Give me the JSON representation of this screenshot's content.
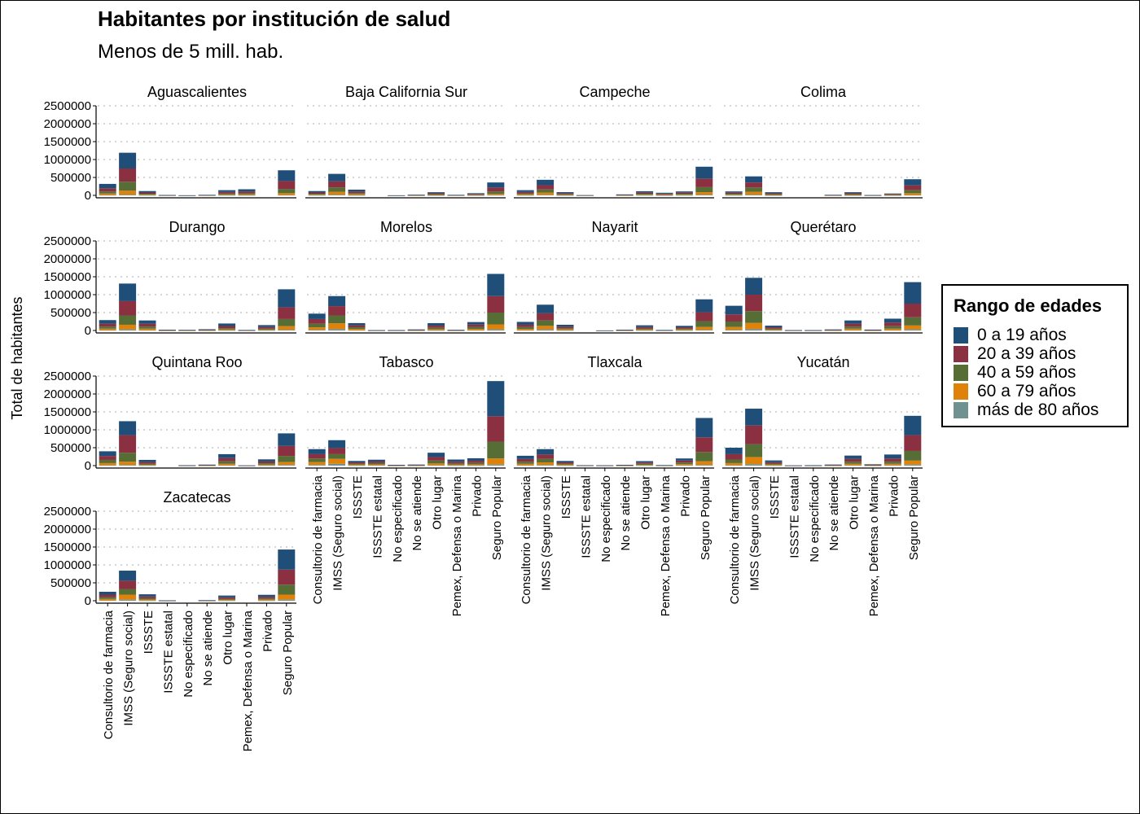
{
  "chart_data": {
    "type": "bar",
    "stacked": true,
    "faceted": true,
    "title": "Habitantes por institución de salud",
    "subtitle": "Menos de 5 mill. hab.",
    "ylabel": "Total de habitantes",
    "xlabel": "",
    "ylim": [
      0,
      2500000
    ],
    "yticks": [
      0,
      500000,
      1000000,
      1500000,
      2000000,
      2500000
    ],
    "ytick_labels": [
      "0",
      "500000",
      "1000000",
      "1500000",
      "2000000",
      "2500000"
    ],
    "grid": "horizontal dotted",
    "legend_position": "right",
    "categories": [
      "Consultorio de farmacia",
      "IMSS (Seguro social)",
      "ISSSTE",
      "ISSSTE estatal",
      "No especificado",
      "No se atiende",
      "Otro lugar",
      "Pemex, Defensa o Marina",
      "Privado",
      "Seguro Popular"
    ],
    "series_names": [
      "0 a 19 años",
      "20 a 39 años",
      "40 a 59 años",
      "60 a 79 años",
      "más de 80 años"
    ],
    "colors": [
      "#1f4e79",
      "#8b3040",
      "#566e36",
      "#e0820a",
      "#6f9290"
    ],
    "legend_title": "Rango de edades",
    "legend_labels": [
      "0 a 19 años",
      "20 a 39 años",
      "40 a 59 años",
      "60 a 79 años",
      "más de 80 años"
    ],
    "facets": [
      {
        "name": "Aguascalientes",
        "values": [
          [
            120000,
            90000,
            60000,
            40000,
            10000
          ],
          [
            440000,
            370000,
            250000,
            110000,
            20000
          ],
          [
            40000,
            35000,
            25000,
            15000,
            5000
          ],
          [
            3000,
            3000,
            2000,
            1000,
            500
          ],
          [
            500,
            500,
            500,
            200,
            100
          ],
          [
            5000,
            4000,
            3000,
            2000,
            500
          ],
          [
            50000,
            45000,
            30000,
            15000,
            5000
          ],
          [
            60000,
            50000,
            35000,
            20000,
            5000
          ],
          [
            0,
            0,
            0,
            0,
            0
          ],
          [
            300000,
            220000,
            120000,
            50000,
            10000
          ]
        ]
      },
      {
        "name": "Baja California Sur",
        "values": [
          [
            40000,
            35000,
            25000,
            15000,
            5000
          ],
          [
            210000,
            170000,
            120000,
            80000,
            20000
          ],
          [
            50000,
            45000,
            35000,
            25000,
            5000
          ],
          [
            0,
            0,
            0,
            0,
            0
          ],
          [
            500,
            400,
            300,
            200,
            100
          ],
          [
            8000,
            5000,
            3000,
            2000,
            500
          ],
          [
            30000,
            25000,
            20000,
            10000,
            3000
          ],
          [
            5000,
            4000,
            3000,
            2000,
            500
          ],
          [
            20000,
            20000,
            12000,
            6000,
            2000
          ],
          [
            140000,
            110000,
            70000,
            30000,
            10000
          ]
        ]
      },
      {
        "name": "Campeche",
        "values": [
          [
            50000,
            40000,
            30000,
            20000,
            5000
          ],
          [
            150000,
            120000,
            90000,
            60000,
            15000
          ],
          [
            30000,
            25000,
            20000,
            12000,
            3000
          ],
          [
            2000,
            1500,
            1000,
            500,
            200
          ],
          [
            0,
            0,
            0,
            0,
            0
          ],
          [
            10000,
            8000,
            5000,
            3000,
            1000
          ],
          [
            40000,
            30000,
            25000,
            15000,
            5000
          ],
          [
            25000,
            20000,
            15000,
            10000,
            3000
          ],
          [
            35000,
            30000,
            25000,
            15000,
            5000
          ],
          [
            330000,
            240000,
            140000,
            70000,
            20000
          ]
        ]
      },
      {
        "name": "Colima",
        "values": [
          [
            35000,
            30000,
            25000,
            15000,
            5000
          ],
          [
            170000,
            140000,
            120000,
            80000,
            20000
          ],
          [
            30000,
            25000,
            20000,
            10000,
            3000
          ],
          [
            0,
            0,
            0,
            0,
            0
          ],
          [
            0,
            0,
            0,
            0,
            0
          ],
          [
            6000,
            4000,
            3000,
            2000,
            500
          ],
          [
            30000,
            25000,
            20000,
            10000,
            3000
          ],
          [
            3000,
            2000,
            1500,
            1000,
            300
          ],
          [
            15000,
            15000,
            12000,
            8000,
            2000
          ],
          [
            170000,
            130000,
            90000,
            50000,
            10000
          ]
        ]
      },
      {
        "name": "Durango",
        "values": [
          [
            100000,
            80000,
            60000,
            40000,
            10000
          ],
          [
            490000,
            400000,
            260000,
            130000,
            30000
          ],
          [
            90000,
            80000,
            60000,
            40000,
            10000
          ],
          [
            8000,
            6000,
            4000,
            2000,
            500
          ],
          [
            6000,
            5000,
            4000,
            2000,
            500
          ],
          [
            15000,
            10000,
            6000,
            3000,
            1000
          ],
          [
            70000,
            60000,
            40000,
            20000,
            5000
          ],
          [
            5000,
            4000,
            3000,
            2000,
            500
          ],
          [
            55000,
            45000,
            30000,
            15000,
            5000
          ],
          [
            500000,
            330000,
            200000,
            100000,
            20000
          ]
        ]
      },
      {
        "name": "Morelos",
        "values": [
          [
            150000,
            130000,
            100000,
            70000,
            20000
          ],
          [
            280000,
            260000,
            220000,
            160000,
            40000
          ],
          [
            60000,
            55000,
            45000,
            35000,
            10000
          ],
          [
            3000,
            2500,
            2000,
            1000,
            300
          ],
          [
            4000,
            3000,
            2500,
            1500,
            500
          ],
          [
            12000,
            8000,
            6000,
            3000,
            1000
          ],
          [
            70000,
            60000,
            45000,
            25000,
            5000
          ],
          [
            7000,
            5000,
            4000,
            2000,
            500
          ],
          [
            70000,
            65000,
            55000,
            35000,
            10000
          ],
          [
            620000,
            460000,
            330000,
            140000,
            30000
          ]
        ]
      },
      {
        "name": "Nayarit",
        "values": [
          [
            80000,
            65000,
            50000,
            35000,
            10000
          ],
          [
            240000,
            200000,
            150000,
            100000,
            30000
          ],
          [
            50000,
            45000,
            35000,
            25000,
            5000
          ],
          [
            0,
            0,
            0,
            0,
            0
          ],
          [
            500,
            500,
            300,
            200,
            100
          ],
          [
            8000,
            6000,
            4000,
            2000,
            500
          ],
          [
            50000,
            40000,
            30000,
            20000,
            5000
          ],
          [
            5000,
            4000,
            3000,
            2000,
            500
          ],
          [
            40000,
            35000,
            30000,
            20000,
            5000
          ],
          [
            360000,
            250000,
            160000,
            80000,
            20000
          ]
        ]
      },
      {
        "name": "Querétaro",
        "values": [
          [
            240000,
            200000,
            150000,
            80000,
            20000
          ],
          [
            470000,
            460000,
            330000,
            170000,
            40000
          ],
          [
            45000,
            40000,
            30000,
            15000,
            5000
          ],
          [
            4000,
            3000,
            2000,
            1000,
            500
          ],
          [
            4000,
            3000,
            2000,
            1000,
            500
          ],
          [
            12000,
            8000,
            6000,
            3000,
            1000
          ],
          [
            90000,
            80000,
            60000,
            40000,
            10000
          ],
          [
            9000,
            7000,
            5000,
            3000,
            1000
          ],
          [
            110000,
            100000,
            70000,
            40000,
            10000
          ],
          [
            600000,
            380000,
            230000,
            110000,
            30000
          ]
        ]
      },
      {
        "name": "Quintana Roo",
        "values": [
          [
            130000,
            110000,
            90000,
            60000,
            10000
          ],
          [
            390000,
            490000,
            250000,
            90000,
            20000
          ],
          [
            60000,
            50000,
            30000,
            15000,
            5000
          ],
          [
            0,
            0,
            0,
            0,
            0
          ],
          [
            3000,
            2500,
            2000,
            1000,
            500
          ],
          [
            10000,
            8000,
            6000,
            3000,
            1000
          ],
          [
            110000,
            90000,
            70000,
            40000,
            10000
          ],
          [
            2000,
            1500,
            1000,
            500,
            200
          ],
          [
            60000,
            50000,
            40000,
            20000,
            5000
          ],
          [
            350000,
            280000,
            170000,
            80000,
            20000
          ]
        ]
      },
      {
        "name": "Tabasco",
        "values": [
          [
            140000,
            120000,
            100000,
            80000,
            20000
          ],
          [
            220000,
            170000,
            130000,
            140000,
            50000
          ],
          [
            40000,
            35000,
            30000,
            20000,
            5000
          ],
          [
            50000,
            45000,
            35000,
            25000,
            10000
          ],
          [
            8000,
            6000,
            4000,
            2000,
            500
          ],
          [
            12000,
            8000,
            6000,
            3000,
            1000
          ],
          [
            120000,
            100000,
            80000,
            50000,
            10000
          ],
          [
            60000,
            50000,
            35000,
            20000,
            5000
          ],
          [
            70000,
            60000,
            45000,
            25000,
            5000
          ],
          [
            980000,
            710000,
            470000,
            170000,
            30000
          ]
        ]
      },
      {
        "name": "Tlaxcala",
        "values": [
          [
            90000,
            75000,
            60000,
            40000,
            10000
          ],
          [
            150000,
            120000,
            100000,
            70000,
            20000
          ],
          [
            40000,
            35000,
            30000,
            20000,
            5000
          ],
          [
            4000,
            3000,
            2000,
            1000,
            500
          ],
          [
            3000,
            2000,
            1500,
            1000,
            300
          ],
          [
            8000,
            6000,
            4000,
            2000,
            500
          ],
          [
            40000,
            35000,
            30000,
            15000,
            5000
          ],
          [
            5000,
            4000,
            3000,
            2000,
            500
          ],
          [
            60000,
            55000,
            45000,
            30000,
            10000
          ],
          [
            540000,
            410000,
            260000,
            100000,
            20000
          ]
        ]
      },
      {
        "name": "Yucatán",
        "values": [
          [
            180000,
            150000,
            100000,
            60000,
            10000
          ],
          [
            470000,
            520000,
            360000,
            200000,
            40000
          ],
          [
            50000,
            40000,
            30000,
            20000,
            5000
          ],
          [
            2000,
            1500,
            1000,
            500,
            200
          ],
          [
            4000,
            3000,
            2000,
            1000,
            500
          ],
          [
            12000,
            8000,
            6000,
            3000,
            1000
          ],
          [
            90000,
            80000,
            60000,
            40000,
            10000
          ],
          [
            12000,
            10000,
            8000,
            5000,
            2000
          ],
          [
            110000,
            90000,
            60000,
            40000,
            10000
          ],
          [
            540000,
            440000,
            270000,
            110000,
            30000
          ]
        ]
      },
      {
        "name": "Zacatecas",
        "values": [
          [
            80000,
            70000,
            50000,
            40000,
            10000
          ],
          [
            280000,
            230000,
            160000,
            140000,
            30000
          ],
          [
            60000,
            50000,
            40000,
            25000,
            5000
          ],
          [
            4000,
            3000,
            2000,
            1000,
            500
          ],
          [
            0,
            0,
            0,
            0,
            0
          ],
          [
            6000,
            4000,
            3000,
            2000,
            500
          ],
          [
            50000,
            40000,
            30000,
            20000,
            5000
          ],
          [
            0,
            0,
            0,
            0,
            0
          ],
          [
            55000,
            45000,
            35000,
            25000,
            5000
          ],
          [
            560000,
            420000,
            280000,
            140000,
            30000
          ]
        ]
      }
    ]
  }
}
